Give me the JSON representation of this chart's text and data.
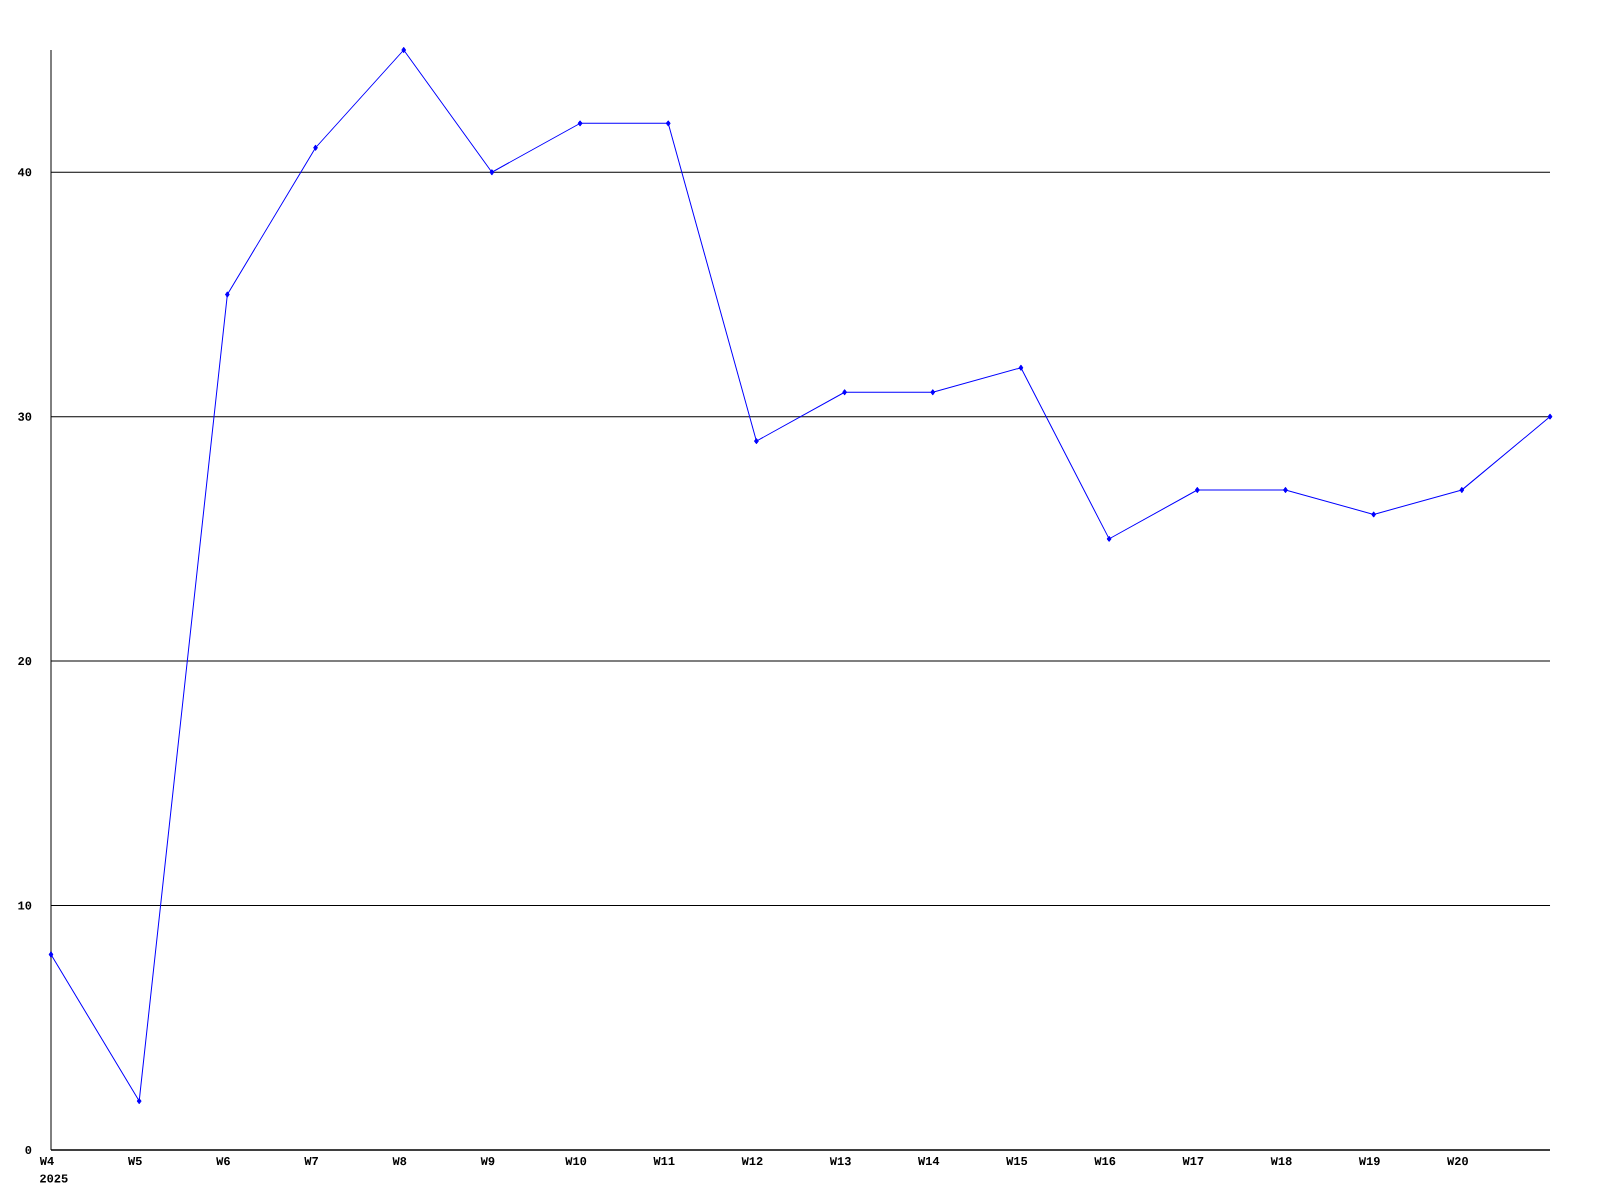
{
  "chart_data": {
    "type": "line",
    "categories": [
      "W4",
      "W5",
      "W6",
      "W7",
      "W8",
      "W9",
      "W10",
      "W11",
      "W12",
      "W13",
      "W14",
      "W15",
      "W16",
      "W17",
      "W18",
      "W19",
      "W20",
      null
    ],
    "values": [
      8,
      2,
      35,
      41,
      45,
      40,
      42,
      42,
      29,
      31,
      31,
      32,
      25,
      27,
      27,
      26,
      27,
      30
    ],
    "color": "#0000ff",
    "ylim": [
      0,
      45
    ],
    "yticks": [
      0,
      10,
      20,
      30,
      40
    ],
    "grid": "y",
    "marker": "diamond",
    "annotations": [
      "2025"
    ]
  }
}
